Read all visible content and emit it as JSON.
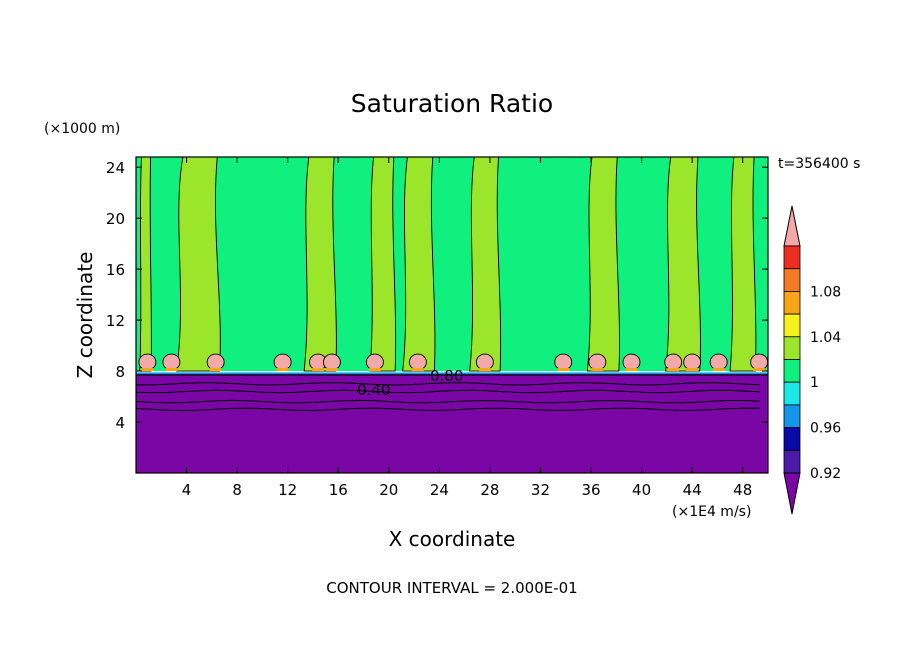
{
  "chart_data": {
    "type": "heatmap",
    "title": "Saturation Ratio",
    "time_label": "t=356400 s",
    "xlabel": "X coordinate",
    "ylabel": "Z coordinate",
    "x_unit": "(×1E4 m/s)",
    "y_unit": "(×1000 m)",
    "xlim": [
      0,
      50
    ],
    "ylim": [
      0,
      24.8
    ],
    "x_ticks": [
      4,
      8,
      12,
      16,
      20,
      24,
      28,
      32,
      36,
      40,
      44,
      48
    ],
    "y_ticks": [
      4,
      8,
      12,
      16,
      20,
      24
    ],
    "footer": "CONTOUR INTERVAL = 2.000E-01",
    "contour_labels": [
      "0.40",
      "0.80"
    ],
    "colorbar": {
      "tick_labels": [
        "1.08",
        "1.04",
        "1",
        "0.96",
        "0.92"
      ],
      "levels": [
        {
          "color": "#f4a9a9"
        },
        {
          "color": "#ef2e22"
        },
        {
          "color": "#f57a24"
        },
        {
          "color": "#f5a515"
        },
        {
          "color": "#f7f21c"
        },
        {
          "color": "#9be62a"
        },
        {
          "color": "#0ff07f"
        },
        {
          "color": "#1de6e6"
        },
        {
          "color": "#1596ea"
        },
        {
          "color": "#0a0aa8"
        },
        {
          "color": "#4a1aa8"
        },
        {
          "color": "#7a06a6"
        }
      ]
    },
    "fields": {
      "dry_layer_top_z": 7.7,
      "cloud_base_z": 8.0,
      "band_color_high": "#0ff07f",
      "band_color_mid": "#9be62a",
      "dry_color": "#7a06a6",
      "cap_color": "#f4a9a9",
      "yellow_green_bands_x": [
        [
          0.3,
          1.2
        ],
        [
          3.2,
          6.6
        ],
        [
          13.3,
          15.8
        ],
        [
          18.5,
          20.5
        ],
        [
          21.1,
          23.6
        ],
        [
          26.4,
          28.8
        ],
        [
          35.7,
          38.2
        ],
        [
          41.9,
          44.6
        ],
        [
          47.0,
          49.0
        ]
      ],
      "caps_x": [
        0.9,
        2.8,
        6.3,
        11.6,
        14.4,
        15.5,
        18.9,
        22.3,
        27.6,
        33.8,
        36.5,
        39.2,
        42.5,
        44.0,
        46.1,
        49.3
      ]
    }
  }
}
